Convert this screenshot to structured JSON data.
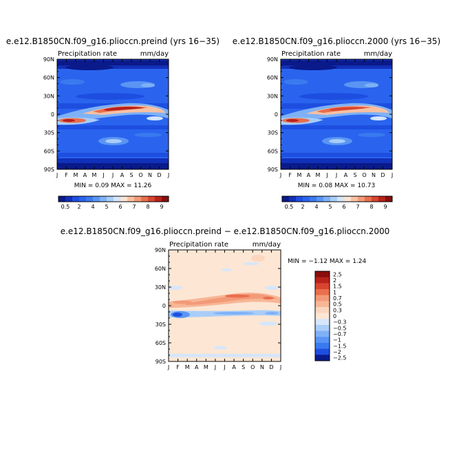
{
  "chart_data": [
    {
      "type": "heatmap",
      "title": "e.e12.B1850CN.f09_g16.plioccn.preind (yrs 16−35)",
      "left_label": "Precipitation rate",
      "right_label": "mm/day",
      "x_ticks": [
        "J",
        "F",
        "M",
        "A",
        "M",
        "J",
        "J",
        "A",
        "S",
        "O",
        "N",
        "D",
        "J"
      ],
      "y_ticks": [
        "90N",
        "60N",
        "30N",
        "0",
        "30S",
        "60S",
        "90S"
      ],
      "min_text": "MIN =    0.09  MAX =   11.26",
      "min": 0.09,
      "max": 11.26,
      "colorbar_labels": [
        "0.5",
        "2",
        "4",
        "5",
        "6",
        "7",
        "8",
        "9"
      ]
    },
    {
      "type": "heatmap",
      "title": "e.e12.B1850CN.f09_g16.plioccn.2000 (yrs 16−35)",
      "left_label": "Precipitation rate",
      "right_label": "mm/day",
      "x_ticks": [
        "J",
        "F",
        "M",
        "A",
        "M",
        "J",
        "J",
        "A",
        "S",
        "O",
        "N",
        "D",
        "J"
      ],
      "y_ticks": [
        "90N",
        "60N",
        "30N",
        "0",
        "30S",
        "60S",
        "90S"
      ],
      "min_text": "MIN =    0.08  MAX =   10.73",
      "min": 0.08,
      "max": 10.73,
      "colorbar_labels": [
        "0.5",
        "2",
        "4",
        "5",
        "6",
        "7",
        "8",
        "9"
      ]
    },
    {
      "type": "heatmap",
      "title": "e.e12.B1850CN.f09_g16.plioccn.preind − e.e12.B1850CN.f09_g16.plioccn.2000",
      "left_label": "Precipitation rate",
      "right_label": "mm/day",
      "x_ticks": [
        "J",
        "F",
        "M",
        "A",
        "M",
        "J",
        "J",
        "A",
        "S",
        "O",
        "N",
        "D",
        "J"
      ],
      "y_ticks": [
        "90N",
        "60N",
        "30N",
        "0",
        "30S",
        "60S",
        "90S"
      ],
      "min_text": "MIN =  −1.12  MAX =    1.24",
      "min": -1.12,
      "max": 1.24,
      "colorbar_labels": [
        "2.5",
        "2",
        "1.5",
        "1",
        "0.7",
        "0.5",
        "0.3",
        "0",
        "−0.3",
        "−0.5",
        "−0.7",
        "−1",
        "−1.5",
        "−2",
        "−2.5"
      ]
    }
  ],
  "colors": {
    "abs_scale": [
      "#0a1a8a",
      "#1230b8",
      "#1d4ee0",
      "#2a64ee",
      "#3a7af0",
      "#5a95f4",
      "#7eb1f6",
      "#a9cdf9",
      "#d4e6fb",
      "#fbe3d4",
      "#f7c0a3",
      "#f29a78",
      "#ea6e4d",
      "#d8452e",
      "#b8221b",
      "#8a0d0d"
    ],
    "diff_scale": [
      "#8a0d0d",
      "#b8221b",
      "#d8452e",
      "#ea6e4d",
      "#f29a78",
      "#f7b695",
      "#fbd6bf",
      "#fde6d4",
      "#d6e6fb",
      "#a9cdf9",
      "#7eb1f6",
      "#5a95f4",
      "#3a7af0",
      "#1d4ee0",
      "#0a1a8a"
    ]
  }
}
